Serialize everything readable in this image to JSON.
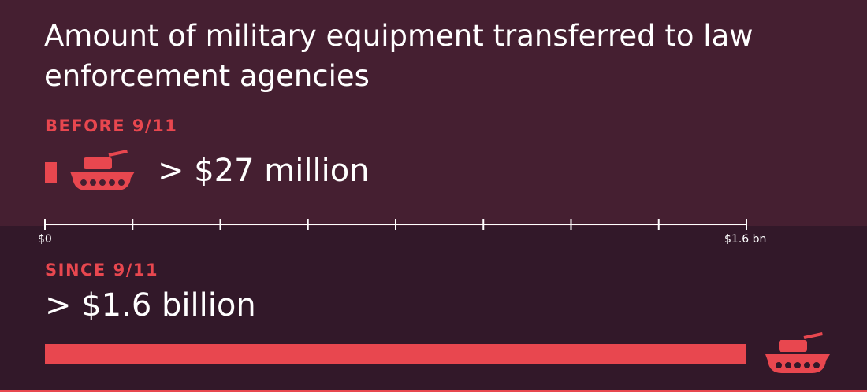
{
  "title": "Amount of military equipment transferred to law enforcement agencies",
  "before": {
    "label": "BEFORE 9/11",
    "value_text": "> $27 million"
  },
  "since": {
    "label": "SINCE 9/11",
    "value_text": "> $1.6 billion"
  },
  "axis": {
    "min_label": "$0",
    "max_label": "$1.6 bn"
  },
  "colors": {
    "accent": "#e8474f",
    "top_background": "#451f31",
    "bottom_background": "#321829",
    "text": "#ffffff"
  },
  "icons": [
    "tank-icon",
    "tank-icon"
  ],
  "chart_data": {
    "type": "bar",
    "orientation": "horizontal",
    "title": "Amount of military equipment transferred to law enforcement agencies",
    "categories": [
      "BEFORE 9/11",
      "SINCE 9/11"
    ],
    "values": [
      0.027,
      1.6
    ],
    "value_labels": [
      "> $27 million",
      "> $1.6 billion"
    ],
    "units": "billion USD",
    "xlim": [
      0,
      1.6
    ],
    "tick_count": 9,
    "tick_labels": [
      "$0",
      "$1.6 bn"
    ],
    "grid": false,
    "legend": "none"
  }
}
